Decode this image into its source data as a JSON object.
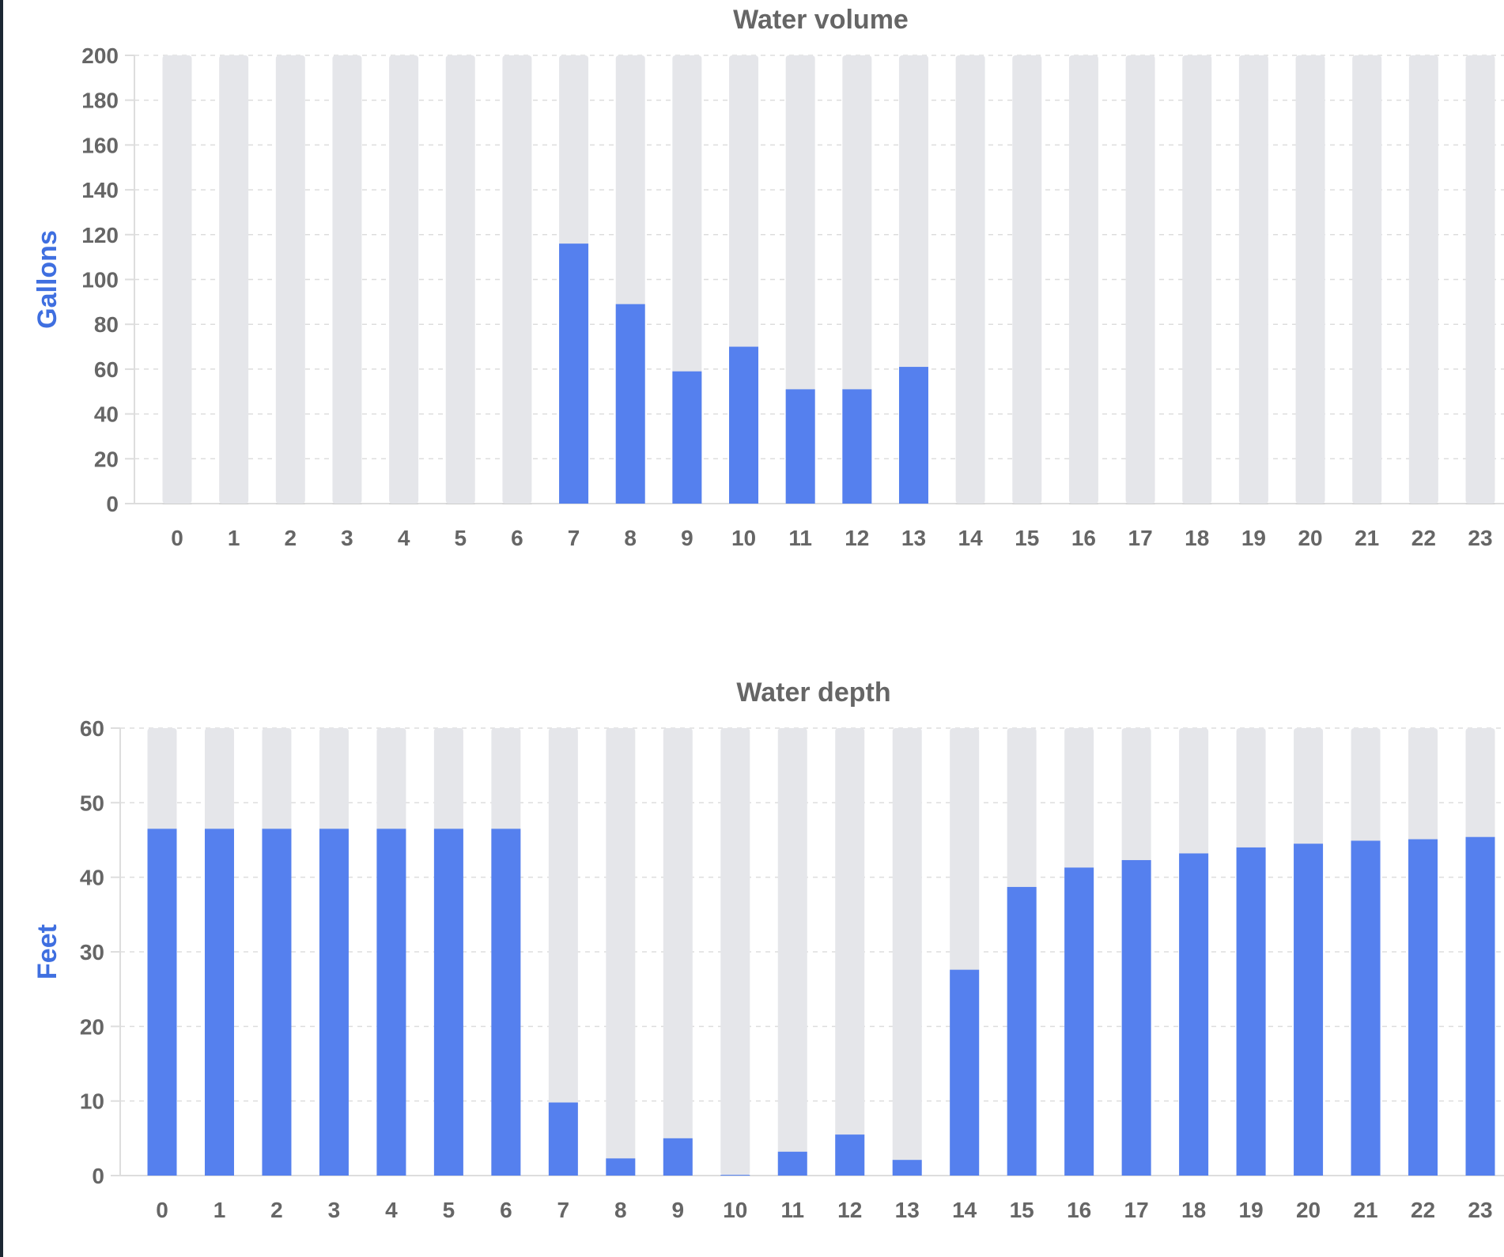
{
  "colors": {
    "bar": "#5580ee",
    "track": "#e5e6ea",
    "text": "#666666",
    "axis_label": "#3f6fe0",
    "grid": "#dddddd"
  },
  "chart_data": [
    {
      "type": "bar",
      "title": "Water volume",
      "xlabel": "",
      "ylabel": "Gallons",
      "ylim": [
        0,
        200
      ],
      "yticks": [
        0,
        20,
        40,
        60,
        80,
        100,
        120,
        140,
        160,
        180,
        200
      ],
      "grid": true,
      "categories": [
        "0",
        "1",
        "2",
        "3",
        "4",
        "5",
        "6",
        "7",
        "8",
        "9",
        "10",
        "11",
        "12",
        "13",
        "14",
        "15",
        "16",
        "17",
        "18",
        "19",
        "20",
        "21",
        "22",
        "23"
      ],
      "values": [
        0,
        0,
        0,
        0,
        0,
        0,
        0,
        116,
        89,
        59,
        70,
        51,
        51,
        61,
        0,
        0,
        0,
        0,
        0,
        0,
        0,
        0,
        0,
        0
      ]
    },
    {
      "type": "bar",
      "title": "Water depth",
      "xlabel": "",
      "ylabel": "Feet",
      "ylim": [
        0,
        60
      ],
      "yticks": [
        0,
        10,
        20,
        30,
        40,
        50,
        60
      ],
      "grid": true,
      "categories": [
        "0",
        "1",
        "2",
        "3",
        "4",
        "5",
        "6",
        "7",
        "8",
        "9",
        "10",
        "11",
        "12",
        "13",
        "14",
        "15",
        "16",
        "17",
        "18",
        "19",
        "20",
        "21",
        "22",
        "23"
      ],
      "values": [
        46.5,
        46.5,
        46.5,
        46.5,
        46.5,
        46.5,
        46.5,
        9.8,
        2.3,
        5.0,
        0.1,
        3.2,
        5.5,
        2.1,
        27.6,
        38.7,
        41.3,
        42.3,
        43.2,
        44.0,
        44.5,
        44.9,
        45.1,
        45.4
      ]
    }
  ]
}
